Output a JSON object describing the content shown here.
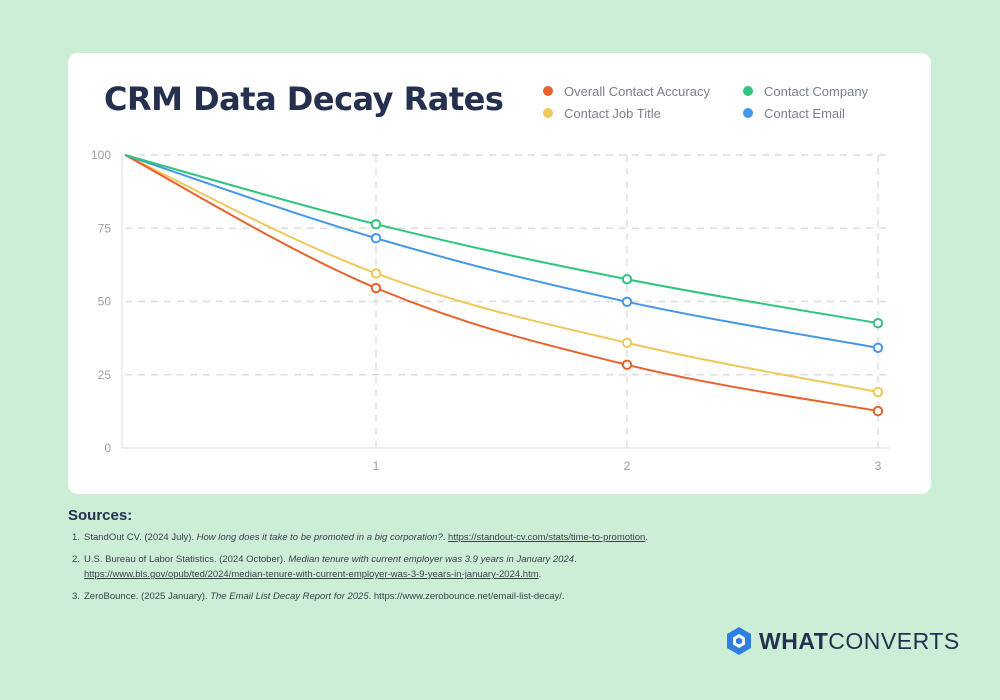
{
  "title": "CRM Data Decay Rates",
  "legend": [
    {
      "label": "Overall Contact Accuracy",
      "color": "#e8622c"
    },
    {
      "label": "Contact Company",
      "color": "#2fc57e"
    },
    {
      "label": "Contact Job Title",
      "color": "#f0c75a"
    },
    {
      "label": "Contact Email",
      "color": "#4597e8"
    }
  ],
  "chart_data": {
    "type": "line",
    "x": [
      0,
      1,
      2,
      3
    ],
    "xticks": [
      "1",
      "2",
      "3"
    ],
    "yticks": [
      "100",
      "75",
      "50",
      "25",
      "0"
    ],
    "ylim": [
      0,
      100
    ],
    "xlim": [
      0,
      3
    ],
    "grid": true,
    "legend_position": "top-right",
    "series": [
      {
        "name": "Overall Contact Accuracy",
        "color": "#e8622c",
        "values": [
          100,
          54.6,
          28.4,
          12.6
        ]
      },
      {
        "name": "Contact Company",
        "color": "#2fc57e",
        "values": [
          100,
          76.4,
          57.6,
          42.6
        ]
      },
      {
        "name": "Contact Job Title",
        "color": "#f0c75a",
        "values": [
          100,
          59.6,
          35.9,
          19.1
        ]
      },
      {
        "name": "Contact Email",
        "color": "#4597e8",
        "values": [
          100,
          71.6,
          49.9,
          34.2
        ]
      }
    ]
  },
  "sources": {
    "heading": "Sources:",
    "items": [
      {
        "num": "1.",
        "pre": "StandOut CV. (2024 July). ",
        "title": "How long does it take to be promoted in a big corporation?",
        "mid": ". ",
        "link": "https://standout-cv.com/stats/time-to-promotion",
        "post": "."
      },
      {
        "num": "2.",
        "pre": "U.S. Bureau of Labor Statistics. (2024 October). ",
        "title": "Median tenure with current employer was 3.9 years in January 2024",
        "mid": ".",
        "link": "https://www.bls.gov/opub/ted/2024/median-tenure-with-current-employer-was-3-9-years-in-january-2024.htm",
        "post": "."
      },
      {
        "num": "3.",
        "pre": "ZeroBounce. (2025 January). ",
        "title": "The Email List Decay Report for 2025",
        "mid": ". https://www.zerobounce.net/email-list-decay/.",
        "link": "",
        "post": ""
      }
    ]
  },
  "brand": {
    "bold": "WHAT",
    "light": "CONVERTS",
    "icon": "whatconverts-logo-icon",
    "color": "#25304f",
    "icon_color": "#2f7fe0"
  }
}
